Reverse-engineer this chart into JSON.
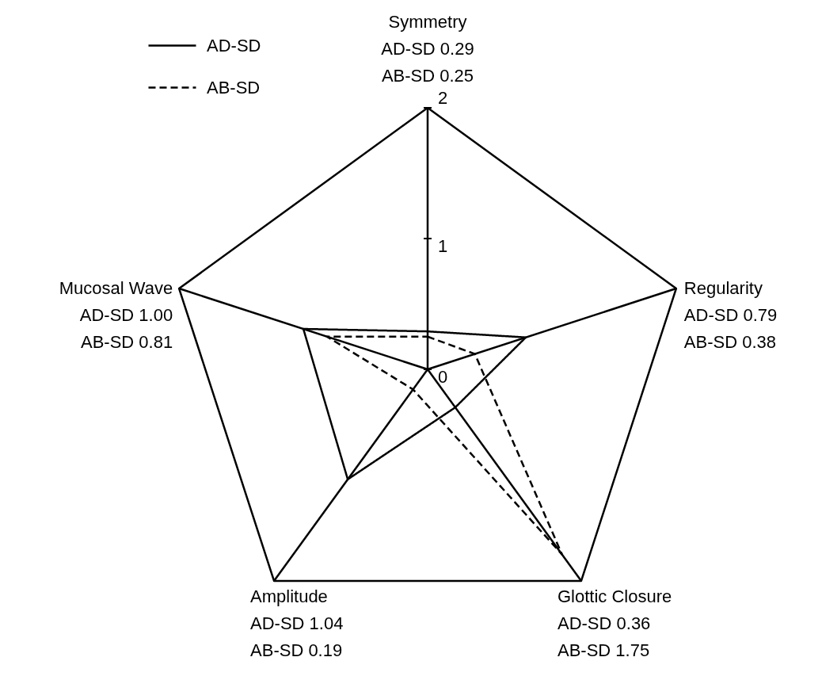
{
  "chart_data": {
    "type": "radar",
    "categories": [
      "Symmetry\nAD-SD 0.29\nAB-SD 0.25",
      "Regularity\nAD-SD 0.79\nAB-SD 0.38",
      "Glottic Closure\nAD-SD 0.36\nAB-SD 1.75",
      "Amplitude\nAD-SD 1.04\nAB-SD 0.19",
      "Mucosal Wave\nAD-SD 1.00\nAB-SD 0.81"
    ],
    "series": [
      {
        "name": "AD-SD",
        "color": "#000000",
        "line_style": "solid",
        "values": [
          0.29,
          0.79,
          0.36,
          1.04,
          1.0
        ]
      },
      {
        "name": "AB-SD",
        "color": "#000000",
        "line_style": "dashed",
        "values": [
          0.25,
          0.38,
          1.75,
          0.19,
          0.81
        ]
      }
    ],
    "ylim": [
      0,
      2
    ],
    "yticks": [
      0,
      1,
      2
    ],
    "legend": "top left"
  }
}
